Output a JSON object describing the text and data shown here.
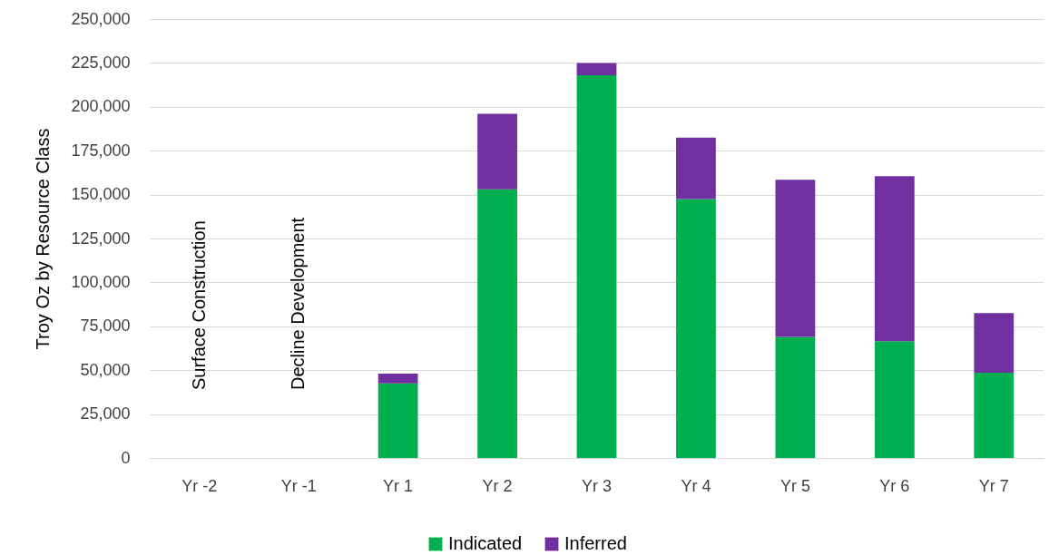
{
  "chart_data": {
    "type": "bar",
    "stacked": true,
    "ylabel": "Troy Oz by Resource Class",
    "categories": [
      "Yr -2",
      "Yr -1",
      "Yr 1",
      "Yr 2",
      "Yr 3",
      "Yr 4",
      "Yr 5",
      "Yr 6",
      "Yr 7"
    ],
    "series": [
      {
        "name": "Indicated",
        "color": "#00b050",
        "values": [
          null,
          null,
          42500,
          153000,
          218000,
          147500,
          69000,
          66500,
          48500
        ]
      },
      {
        "name": "Inferred",
        "color": "#7030a0",
        "values": [
          null,
          null,
          5500,
          43000,
          7000,
          35000,
          89500,
          94000,
          34000
        ]
      }
    ],
    "ylim": [
      0,
      250000
    ],
    "yticks": [
      {
        "value": 0,
        "label": "0"
      },
      {
        "value": 25000,
        "label": "25,000"
      },
      {
        "value": 50000,
        "label": "50,000"
      },
      {
        "value": 75000,
        "label": "75,000"
      },
      {
        "value": 100000,
        "label": "100,000"
      },
      {
        "value": 125000,
        "label": "125,000"
      },
      {
        "value": 150000,
        "label": "150,000"
      },
      {
        "value": 175000,
        "label": "175,000"
      },
      {
        "value": 200000,
        "label": "200,000"
      },
      {
        "value": 225000,
        "label": "225,000"
      },
      {
        "value": 250000,
        "label": "250,000"
      }
    ],
    "grid": "y",
    "legend": "bottom",
    "annotations": [
      "Surface Construction",
      "Decline Development"
    ]
  }
}
